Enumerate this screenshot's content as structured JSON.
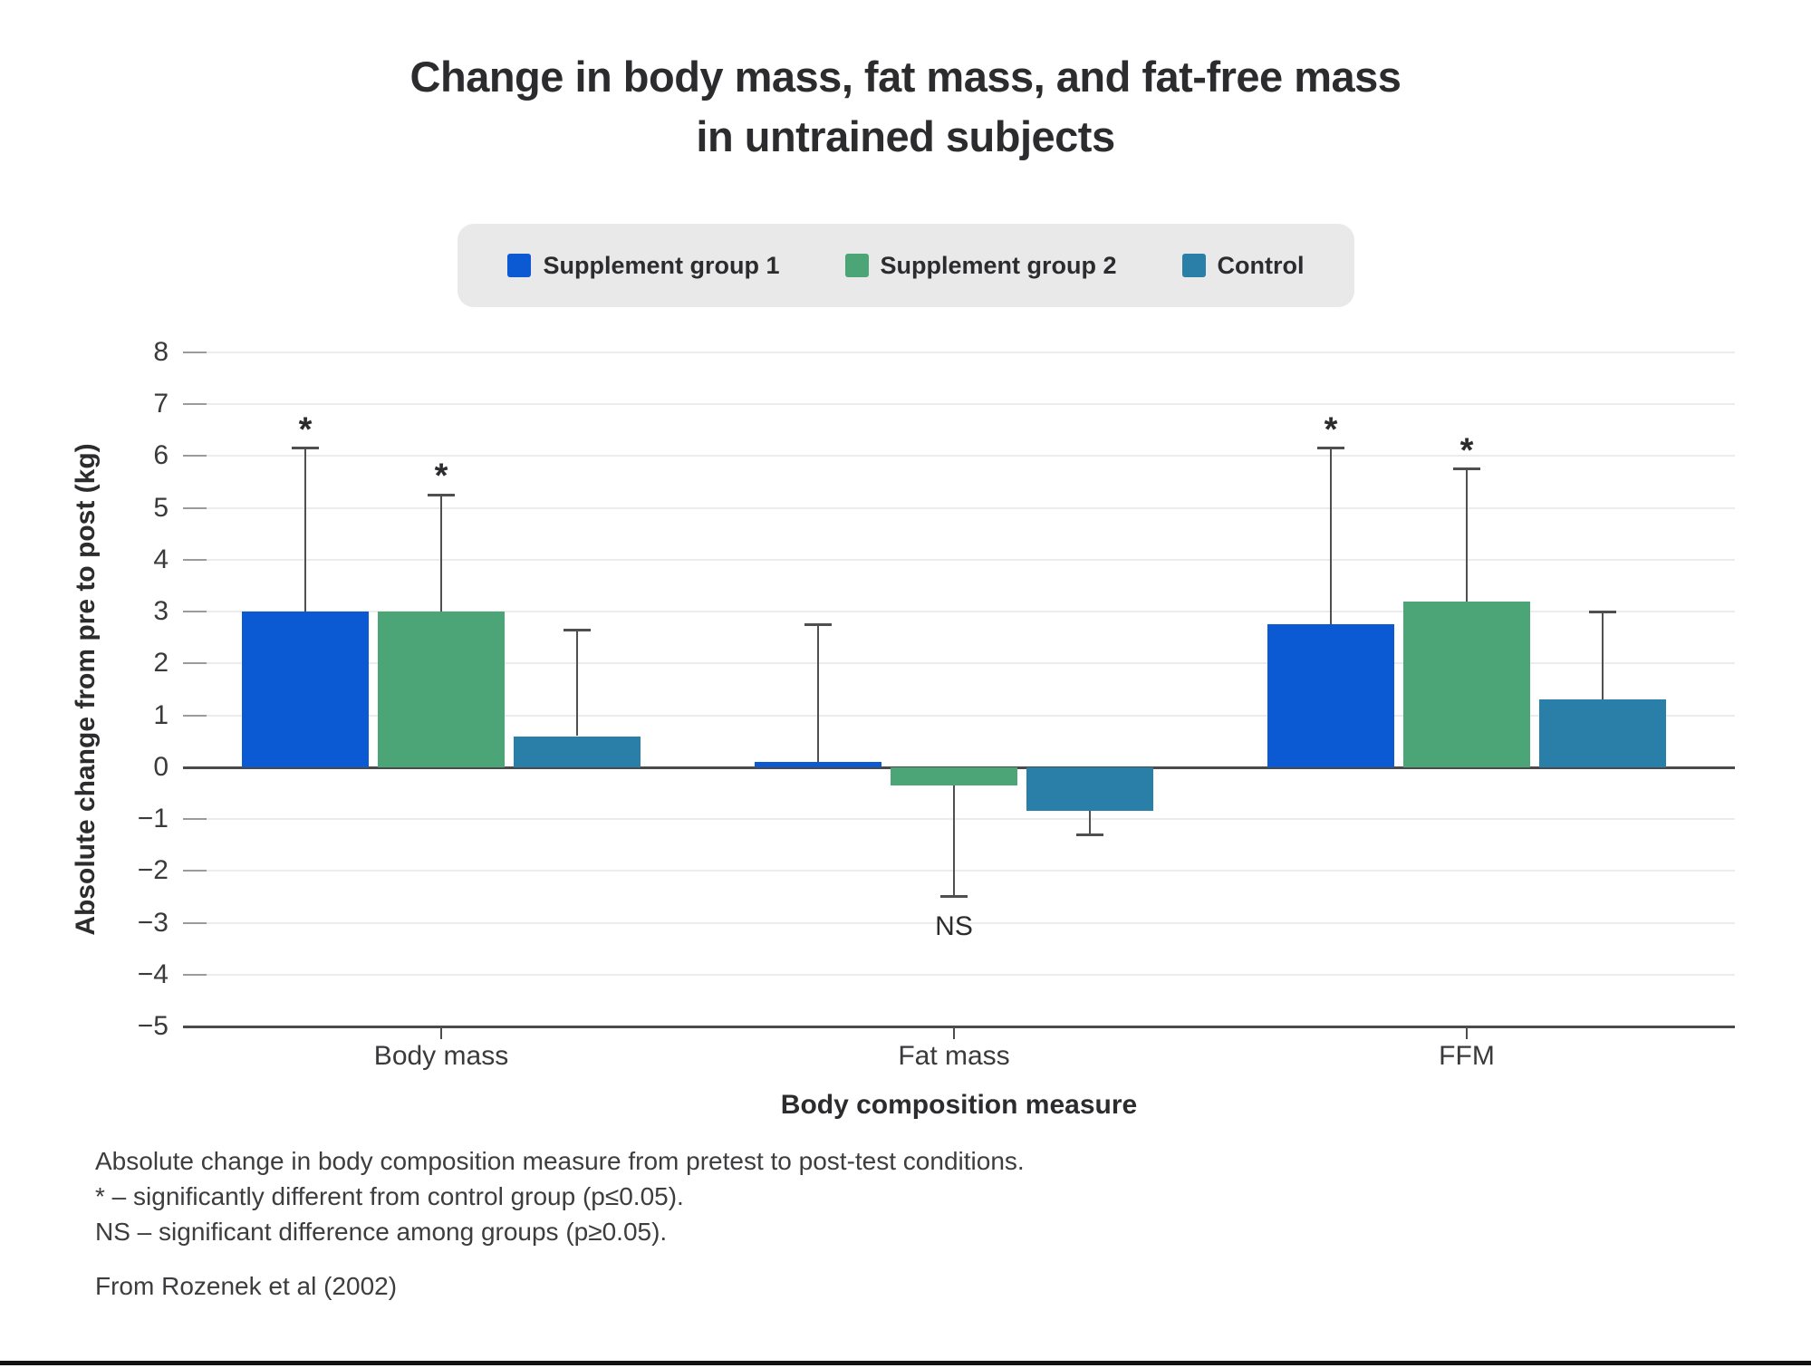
{
  "title": {
    "line1": "Change in body mass, fat mass, and fat-free mass",
    "line2": "in untrained subjects"
  },
  "chart_data": {
    "type": "bar",
    "title": "Change in body mass, fat mass, and fat-free mass in untrained subjects",
    "categories": [
      "Body mass",
      "Fat mass",
      "FFM"
    ],
    "xlabel": "Body composition measure",
    "ylabel": "Absolute change from pre to post (kg)",
    "ylim": [
      -5,
      8
    ],
    "yticks": [
      8,
      7,
      6,
      5,
      4,
      3,
      2,
      1,
      0,
      -1,
      -2,
      -3,
      -4,
      -5
    ],
    "ytick_labels": [
      "8",
      "7",
      "6",
      "5",
      "4",
      "3",
      "2",
      "1",
      "0",
      "−1",
      "−2",
      "−3",
      "−4",
      "−5"
    ],
    "grid": true,
    "legend_position": "top",
    "series": [
      {
        "name": "Supplement group 1",
        "color": "#0c59d4",
        "values": [
          3.0,
          0.1,
          2.75
        ],
        "whisker_end": [
          6.15,
          2.75,
          6.15
        ]
      },
      {
        "name": "Supplement group 2",
        "color": "#4ba577",
        "values": [
          3.0,
          -0.35,
          3.2
        ],
        "whisker_end": [
          5.25,
          -2.5,
          5.75
        ]
      },
      {
        "name": "Control",
        "color": "#2a7fa9",
        "values": [
          0.6,
          -0.85,
          1.3
        ],
        "whisker_end": [
          2.65,
          -1.3,
          3.0
        ]
      }
    ],
    "annotations": [
      {
        "text": "*",
        "category": 0,
        "series": 0,
        "placement": "above"
      },
      {
        "text": "*",
        "category": 0,
        "series": 1,
        "placement": "above"
      },
      {
        "text": "*",
        "category": 2,
        "series": 0,
        "placement": "above"
      },
      {
        "text": "*",
        "category": 2,
        "series": 1,
        "placement": "above"
      },
      {
        "text": "NS",
        "category": 1,
        "series": 1,
        "placement": "below"
      }
    ]
  },
  "footnotes": {
    "line1": "Absolute change in body composition measure from pretest to post-test conditions.",
    "line2": "* – significantly different from control group (p≤0.05).",
    "line3": "NS – significant difference among groups (p≥0.05)."
  },
  "source": "From Rozenek et al (2002)"
}
